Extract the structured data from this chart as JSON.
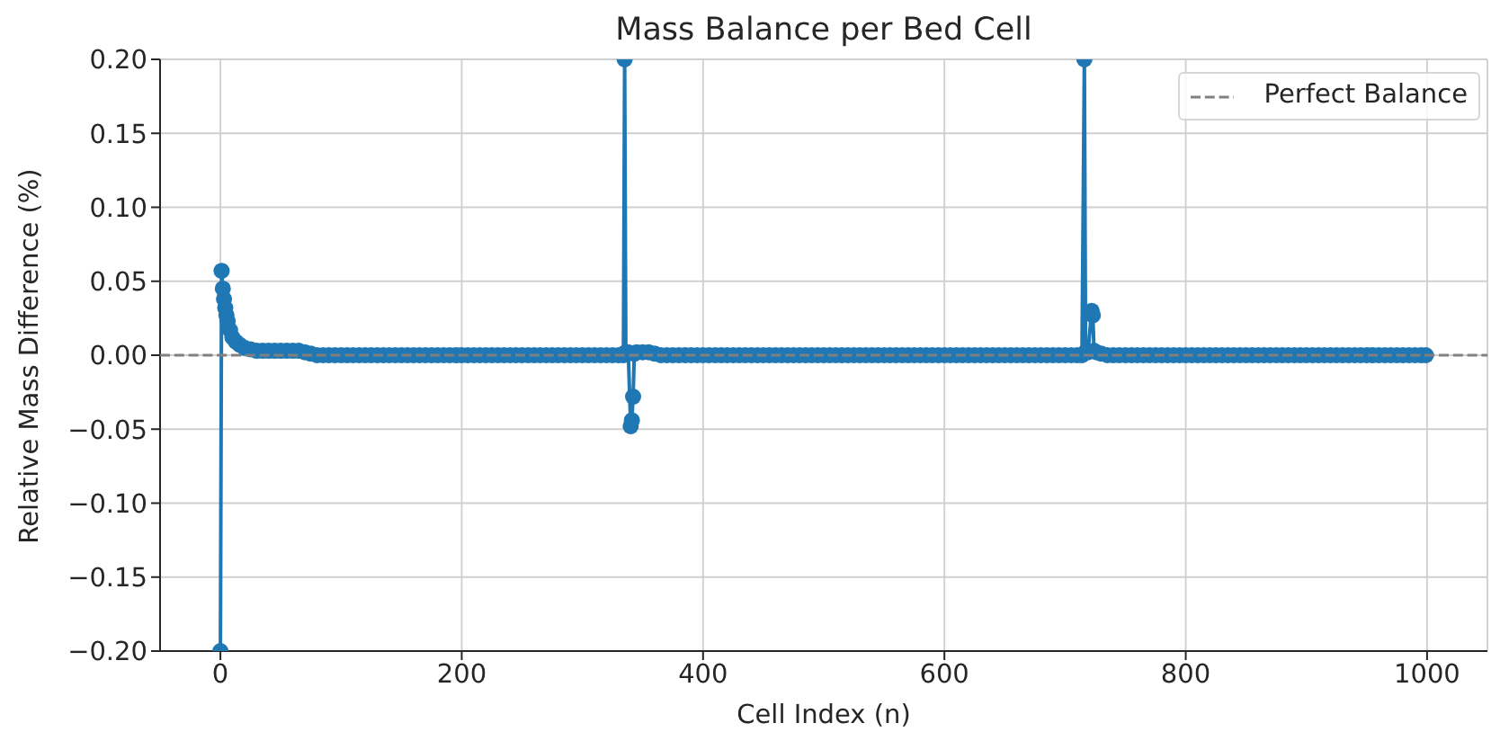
{
  "chart_data": {
    "type": "line",
    "title": "Mass Balance per Bed Cell",
    "xlabel": "Cell Index (n)",
    "ylabel": "Relative Mass Difference (%)",
    "x": [
      0,
      1,
      2,
      3,
      4,
      5,
      6,
      8,
      10,
      13,
      16,
      20,
      25,
      30,
      35,
      40,
      45,
      50,
      55,
      60,
      65,
      70,
      75,
      80,
      85,
      90,
      95,
      100,
      105,
      110,
      115,
      120,
      125,
      130,
      135,
      140,
      145,
      150,
      155,
      160,
      165,
      170,
      175,
      180,
      185,
      190,
      195,
      200,
      205,
      210,
      215,
      220,
      225,
      230,
      235,
      240,
      245,
      250,
      255,
      260,
      265,
      270,
      275,
      280,
      285,
      290,
      295,
      300,
      305,
      310,
      315,
      320,
      325,
      330,
      334,
      335,
      336,
      338,
      340,
      341,
      342,
      343,
      345,
      350,
      355,
      360,
      365,
      370,
      375,
      380,
      385,
      390,
      395,
      400,
      405,
      410,
      415,
      420,
      425,
      430,
      435,
      440,
      445,
      450,
      455,
      460,
      465,
      470,
      475,
      480,
      485,
      490,
      495,
      500,
      505,
      510,
      515,
      520,
      525,
      530,
      535,
      540,
      545,
      550,
      555,
      560,
      565,
      570,
      575,
      580,
      585,
      590,
      595,
      600,
      605,
      610,
      615,
      620,
      625,
      630,
      635,
      640,
      645,
      650,
      655,
      660,
      665,
      670,
      675,
      680,
      685,
      690,
      695,
      700,
      705,
      710,
      714,
      716,
      717,
      719,
      722,
      723,
      724,
      726,
      730,
      735,
      740,
      745,
      750,
      755,
      760,
      765,
      770,
      775,
      780,
      785,
      790,
      795,
      800,
      805,
      810,
      815,
      820,
      825,
      830,
      835,
      840,
      845,
      850,
      855,
      860,
      865,
      870,
      875,
      880,
      885,
      890,
      895,
      900,
      905,
      910,
      915,
      920,
      925,
      930,
      935,
      940,
      945,
      950,
      955,
      960,
      965,
      970,
      975,
      980,
      985,
      990,
      995,
      999
    ],
    "series": [
      {
        "color": "#1f77b4",
        "values": [
          -0.2,
          0.057,
          0.045,
          0.038,
          0.032,
          0.027,
          0.023,
          0.017,
          0.012,
          0.009,
          0.007,
          0.005,
          0.004,
          0.003,
          0.003,
          0.003,
          0.003,
          0.003,
          0.003,
          0.003,
          0.003,
          0.002,
          0.001,
          0,
          0,
          0,
          0,
          0,
          0,
          0,
          0,
          0,
          0,
          0,
          0,
          0,
          0,
          0,
          0,
          0,
          0,
          0,
          0,
          0,
          0,
          0,
          0,
          0,
          0,
          0,
          0,
          0,
          0,
          0,
          0,
          0,
          0,
          0,
          0,
          0,
          0,
          0,
          0,
          0,
          0,
          0,
          0,
          0,
          0,
          0,
          0,
          0,
          0,
          0,
          0,
          0.2,
          0.002,
          0.002,
          -0.048,
          -0.044,
          -0.028,
          0.001,
          0.002,
          0.002,
          0.002,
          0.001,
          0,
          0,
          0,
          0,
          0,
          0,
          0,
          0,
          0,
          0,
          0,
          0,
          0,
          0,
          0,
          0,
          0,
          0,
          0,
          0,
          0,
          0,
          0,
          0,
          0,
          0,
          0,
          0,
          0,
          0,
          0,
          0,
          0,
          0,
          0,
          0,
          0,
          0,
          0,
          0,
          0,
          0,
          0,
          0,
          0,
          0,
          0,
          0,
          0,
          0,
          0,
          0,
          0,
          0,
          0,
          0,
          0,
          0,
          0,
          0,
          0,
          0,
          0,
          0,
          0,
          0,
          0,
          0,
          0,
          0,
          0,
          0.2,
          0.002,
          0.002,
          0.03,
          0.027,
          0.003,
          0.002,
          0.001,
          0,
          0,
          0,
          0,
          0,
          0,
          0,
          0,
          0,
          0,
          0,
          0,
          0,
          0,
          0,
          0,
          0,
          0,
          0,
          0,
          0,
          0,
          0,
          0,
          0,
          0,
          0,
          0,
          0,
          0,
          0,
          0,
          0,
          0,
          0,
          0,
          0,
          0,
          0,
          0,
          0,
          0,
          0,
          0,
          0,
          0,
          0,
          0,
          0,
          0,
          0,
          0,
          0,
          0
        ]
      }
    ],
    "xlim": [
      -50,
      1050
    ],
    "xticks": [
      0,
      200,
      400,
      600,
      800,
      1000
    ],
    "ylim": [
      -0.2,
      0.2
    ],
    "yticks": [
      {
        "value": -0.2,
        "label": "−0.20"
      },
      {
        "value": -0.15,
        "label": "−0.15"
      },
      {
        "value": -0.1,
        "label": "−0.10"
      },
      {
        "value": -0.05,
        "label": "−0.05"
      },
      {
        "value": 0,
        "label": "0.00"
      },
      {
        "value": 0.05,
        "label": "0.05"
      },
      {
        "value": 0.1,
        "label": "0.10"
      },
      {
        "value": 0.15,
        "label": "0.15"
      },
      {
        "value": 0.2,
        "label": "0.20"
      }
    ],
    "ref_lines": [
      {
        "axis": "y",
        "value": 0,
        "label": "Perfect Balance",
        "color": "#808080",
        "line_style": "dashed"
      }
    ],
    "grid": true,
    "legend": "top right",
    "marker": "circle",
    "line_style": "solid"
  }
}
